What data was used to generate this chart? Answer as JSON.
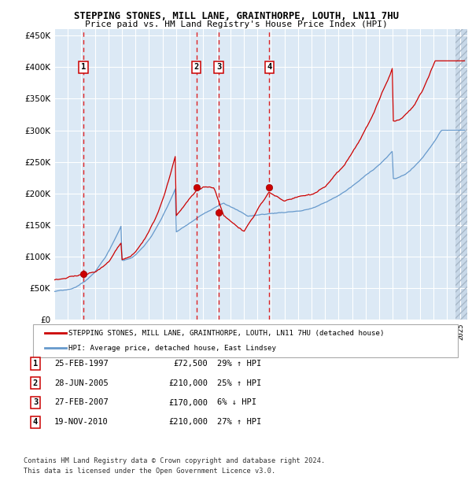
{
  "title": "STEPPING STONES, MILL LANE, GRAINTHORPE, LOUTH, LN11 7HU",
  "subtitle": "Price paid vs. HM Land Registry's House Price Index (HPI)",
  "legend_label_red": "STEPPING STONES, MILL LANE, GRAINTHORPE, LOUTH, LN11 7HU (detached house)",
  "legend_label_blue": "HPI: Average price, detached house, East Lindsey",
  "footer1": "Contains HM Land Registry data © Crown copyright and database right 2024.",
  "footer2": "This data is licensed under the Open Government Licence v3.0.",
  "transactions": [
    {
      "num": 1,
      "date": "25-FEB-1997",
      "price": 72500,
      "pct": "29%",
      "dir": "↑",
      "year": 1997.15
    },
    {
      "num": 2,
      "date": "28-JUN-2005",
      "price": 210000,
      "pct": "25%",
      "dir": "↑",
      "year": 2005.49
    },
    {
      "num": 3,
      "date": "27-FEB-2007",
      "price": 170000,
      "pct": "6%",
      "dir": "↓",
      "year": 2007.15
    },
    {
      "num": 4,
      "date": "19-NOV-2010",
      "price": 210000,
      "pct": "27%",
      "dir": "↑",
      "year": 2010.88
    }
  ],
  "bg_color": "#dce9f5",
  "grid_color": "#ffffff",
  "red_line_color": "#cc0000",
  "blue_line_color": "#6699cc",
  "dashed_color": "#dd0000",
  "ylim": [
    0,
    460000
  ],
  "yticks": [
    0,
    50000,
    100000,
    150000,
    200000,
    250000,
    300000,
    350000,
    400000,
    450000
  ],
  "xmin": 1995.0,
  "xmax": 2025.5
}
